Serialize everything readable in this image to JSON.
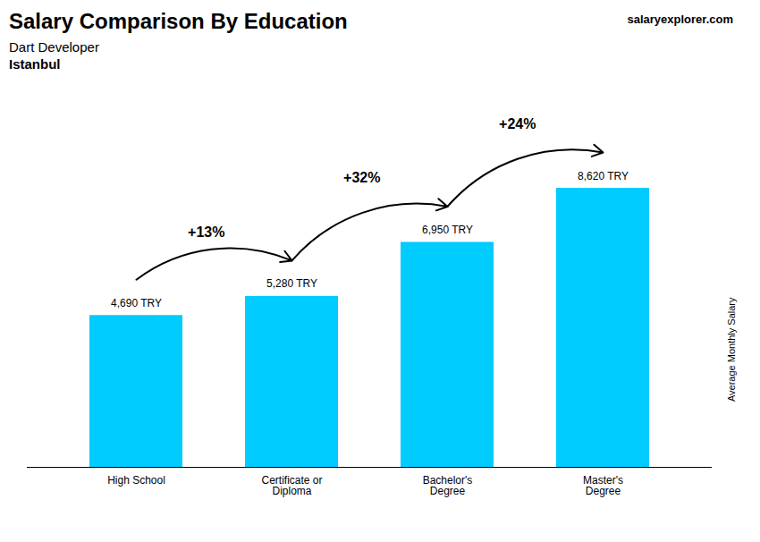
{
  "chart_data": {
    "type": "bar",
    "title": "Salary Comparison By Education",
    "subtitle": [
      "Dart Developer",
      "Istanbul"
    ],
    "source": "salaryexplorer.com",
    "ylabel": "Average Monthly Salary",
    "categories": [
      "High School",
      "Certificate or\nDiploma",
      "Bachelor's\nDegree",
      "Master's\nDegree"
    ],
    "values": [
      4690,
      5280,
      6950,
      8620
    ],
    "value_labels": [
      "4,690 TRY",
      "5,280 TRY",
      "6,950 TRY",
      "8,620 TRY"
    ],
    "data_labels": true,
    "annotations": [
      "+13%",
      "+32%",
      "+24%"
    ],
    "color": "#00CCFF",
    "ylim": [
      0,
      10500
    ],
    "tick_labels": "x",
    "grid": false
  }
}
